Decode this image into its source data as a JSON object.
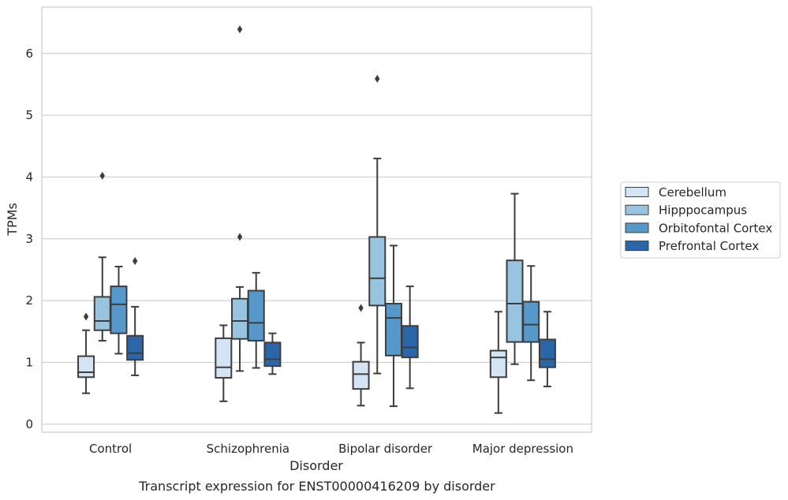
{
  "chart_data": {
    "type": "box",
    "xlabel": "Disorder",
    "ylabel": "TPMs",
    "caption": "Transcript expression for ENST00000416209 by disorder",
    "ylim": [
      -0.13,
      6.75
    ],
    "yticks": [
      0,
      1,
      2,
      3,
      4,
      5,
      6
    ],
    "grid": "horizontal",
    "legend_position": "right",
    "categories": [
      "Control",
      "Schizophrenia",
      "Bipolar disorder",
      "Major depression"
    ],
    "series": [
      {
        "name": "Cerebellum",
        "color": "#d3e4f4",
        "boxes": [
          {
            "whislo": 0.5,
            "q1": 0.76,
            "med": 0.84,
            "q3": 1.1,
            "whishi": 1.52,
            "fliers": [
              1.74
            ]
          },
          {
            "whislo": 0.37,
            "q1": 0.75,
            "med": 0.92,
            "q3": 1.39,
            "whishi": 1.6,
            "fliers": []
          },
          {
            "whislo": 0.3,
            "q1": 0.57,
            "med": 0.81,
            "q3": 1.01,
            "whishi": 1.32,
            "fliers": [
              1.88
            ]
          },
          {
            "whislo": 0.18,
            "q1": 0.76,
            "med": 1.08,
            "q3": 1.19,
            "whishi": 1.82,
            "fliers": []
          }
        ]
      },
      {
        "name": "Hipppocampus",
        "color": "#99c4df",
        "boxes": [
          {
            "whislo": 1.35,
            "q1": 1.52,
            "med": 1.67,
            "q3": 2.06,
            "whishi": 2.7,
            "fliers": [
              4.02
            ]
          },
          {
            "whislo": 0.86,
            "q1": 1.38,
            "med": 1.67,
            "q3": 2.03,
            "whishi": 2.22,
            "fliers": [
              3.03,
              6.39
            ]
          },
          {
            "whislo": 0.82,
            "q1": 1.92,
            "med": 2.36,
            "q3": 3.03,
            "whishi": 4.3,
            "fliers": [
              5.59
            ]
          },
          {
            "whislo": 0.97,
            "q1": 1.33,
            "med": 1.95,
            "q3": 2.65,
            "whishi": 3.73,
            "fliers": []
          }
        ]
      },
      {
        "name": "Orbitofontal Cortex",
        "color": "#5598c9",
        "boxes": [
          {
            "whislo": 1.14,
            "q1": 1.47,
            "med": 1.94,
            "q3": 2.23,
            "whishi": 2.55,
            "fliers": []
          },
          {
            "whislo": 0.91,
            "q1": 1.35,
            "med": 1.64,
            "q3": 2.16,
            "whishi": 2.45,
            "fliers": []
          },
          {
            "whislo": 0.29,
            "q1": 1.11,
            "med": 1.72,
            "q3": 1.95,
            "whishi": 2.89,
            "fliers": []
          },
          {
            "whislo": 0.71,
            "q1": 1.33,
            "med": 1.61,
            "q3": 1.98,
            "whishi": 2.56,
            "fliers": []
          }
        ]
      },
      {
        "name": "Prefrontal Cortex",
        "color": "#2a66a8",
        "boxes": [
          {
            "whislo": 0.79,
            "q1": 1.04,
            "med": 1.15,
            "q3": 1.43,
            "whishi": 1.9,
            "fliers": [
              2.64
            ]
          },
          {
            "whislo": 0.81,
            "q1": 0.94,
            "med": 1.05,
            "q3": 1.32,
            "whishi": 1.47,
            "fliers": []
          },
          {
            "whislo": 0.58,
            "q1": 1.08,
            "med": 1.24,
            "q3": 1.59,
            "whishi": 2.23,
            "fliers": []
          },
          {
            "whislo": 0.61,
            "q1": 0.92,
            "med": 1.05,
            "q3": 1.37,
            "whishi": 1.82,
            "fliers": []
          }
        ]
      }
    ]
  }
}
